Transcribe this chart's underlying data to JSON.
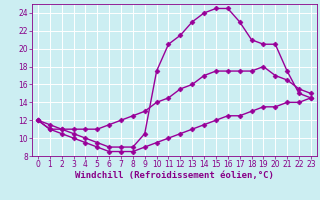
{
  "line1_x": [
    0,
    1,
    2,
    3,
    4,
    5,
    6,
    7,
    8,
    9,
    10,
    11,
    12,
    13,
    14,
    15,
    16,
    17,
    18,
    19,
    20,
    21,
    22,
    23
  ],
  "line1_y": [
    12.0,
    11.0,
    11.0,
    10.5,
    10.0,
    9.5,
    9.0,
    9.0,
    9.0,
    10.5,
    17.5,
    20.5,
    21.5,
    23.0,
    24.0,
    24.5,
    24.5,
    23.0,
    21.0,
    20.5,
    20.5,
    17.5,
    15.0,
    14.5
  ],
  "line2_x": [
    0,
    1,
    2,
    3,
    4,
    5,
    6,
    7,
    8,
    9,
    10,
    11,
    12,
    13,
    14,
    15,
    16,
    17,
    18,
    19,
    20,
    21,
    22,
    23
  ],
  "line2_y": [
    12.0,
    11.5,
    11.0,
    11.0,
    11.0,
    11.0,
    11.5,
    12.0,
    12.5,
    13.0,
    14.0,
    14.5,
    15.5,
    16.0,
    17.0,
    17.5,
    17.5,
    17.5,
    17.5,
    18.0,
    17.0,
    16.5,
    15.5,
    15.0
  ],
  "line3_x": [
    0,
    1,
    2,
    3,
    4,
    5,
    6,
    7,
    8,
    9,
    10,
    11,
    12,
    13,
    14,
    15,
    16,
    17,
    18,
    19,
    20,
    21,
    22,
    23
  ],
  "line3_y": [
    12.0,
    11.0,
    10.5,
    10.0,
    9.5,
    9.0,
    8.5,
    8.5,
    8.5,
    9.0,
    9.5,
    10.0,
    10.5,
    11.0,
    11.5,
    12.0,
    12.5,
    12.5,
    13.0,
    13.5,
    13.5,
    14.0,
    14.0,
    14.5
  ],
  "line_color": "#990099",
  "marker": "D",
  "markersize": 2.5,
  "linewidth": 1.0,
  "xlabel": "Windchill (Refroidissement éolien,°C)",
  "xlabel_fontsize": 6.5,
  "xlim": [
    -0.5,
    23.5
  ],
  "ylim": [
    8,
    25
  ],
  "yticks": [
    8,
    10,
    12,
    14,
    16,
    18,
    20,
    22,
    24
  ],
  "xticks": [
    0,
    1,
    2,
    3,
    4,
    5,
    6,
    7,
    8,
    9,
    10,
    11,
    12,
    13,
    14,
    15,
    16,
    17,
    18,
    19,
    20,
    21,
    22,
    23
  ],
  "bg_color": "#cceef2",
  "grid_color": "#ffffff",
  "tick_fontsize": 5.5,
  "tick_color": "#880088"
}
